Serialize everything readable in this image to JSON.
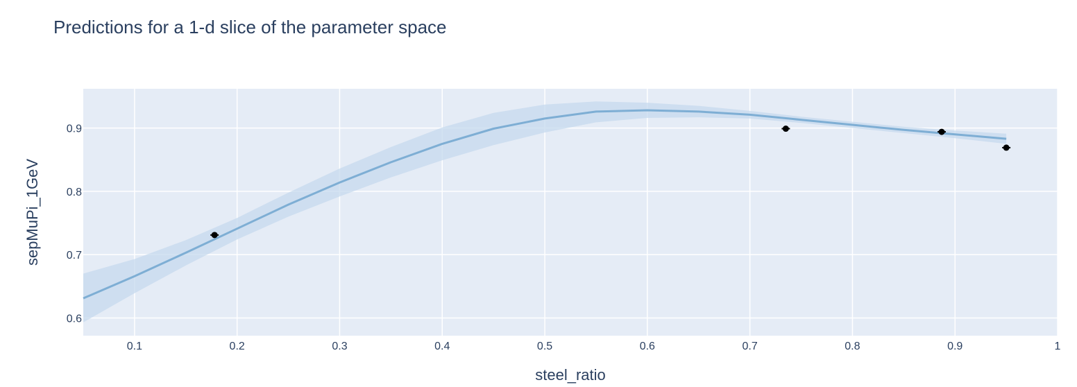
{
  "chart_data": {
    "type": "line",
    "title": "Predictions for a 1-d slice of the parameter space",
    "xlabel": "steel_ratio",
    "ylabel": "sepMuPi_1GeV",
    "xlim": [
      0.05,
      1.0
    ],
    "ylim": [
      0.572,
      0.962
    ],
    "x_ticks": [
      0.1,
      0.2,
      0.3,
      0.4,
      0.5,
      0.6,
      0.7,
      0.8,
      0.9,
      1
    ],
    "x_tick_labels": [
      "0.1",
      "0.2",
      "0.3",
      "0.4",
      "0.5",
      "0.6",
      "0.7",
      "0.8",
      "0.9",
      "1"
    ],
    "y_ticks": [
      0.6,
      0.7,
      0.8,
      0.9
    ],
    "y_tick_labels": [
      "0.6",
      "0.7",
      "0.8",
      "0.9"
    ],
    "grid": true,
    "colors": {
      "plot_bg": "#e5ecf6",
      "grid": "#ffffff",
      "mean_line": "#7eaed4",
      "band": "#c6daee",
      "observations": "#000000",
      "text": "#2a3f5f"
    },
    "series": [
      {
        "kind": "mean",
        "x": [
          0.05,
          0.1,
          0.15,
          0.2,
          0.25,
          0.3,
          0.35,
          0.4,
          0.45,
          0.5,
          0.55,
          0.6,
          0.65,
          0.7,
          0.75,
          0.8,
          0.85,
          0.9,
          0.95
        ],
        "y": [
          0.631,
          0.666,
          0.703,
          0.741,
          0.779,
          0.814,
          0.846,
          0.875,
          0.899,
          0.915,
          0.926,
          0.928,
          0.926,
          0.921,
          0.913,
          0.905,
          0.897,
          0.89,
          0.883
        ]
      },
      {
        "kind": "band",
        "x": [
          0.05,
          0.1,
          0.15,
          0.2,
          0.25,
          0.3,
          0.35,
          0.4,
          0.45,
          0.5,
          0.55,
          0.6,
          0.65,
          0.7,
          0.75,
          0.8,
          0.85,
          0.9,
          0.95
        ],
        "upper": [
          0.67,
          0.693,
          0.723,
          0.758,
          0.798,
          0.836,
          0.87,
          0.901,
          0.924,
          0.937,
          0.942,
          0.94,
          0.935,
          0.927,
          0.918,
          0.91,
          0.902,
          0.896,
          0.891
        ],
        "lower": [
          0.593,
          0.639,
          0.683,
          0.724,
          0.76,
          0.792,
          0.822,
          0.849,
          0.873,
          0.893,
          0.909,
          0.916,
          0.917,
          0.915,
          0.908,
          0.9,
          0.892,
          0.884,
          0.875
        ]
      },
      {
        "kind": "observations",
        "x": [
          0.178,
          0.735,
          0.887,
          0.95
        ],
        "y": [
          0.731,
          0.899,
          0.894,
          0.869
        ]
      }
    ]
  }
}
